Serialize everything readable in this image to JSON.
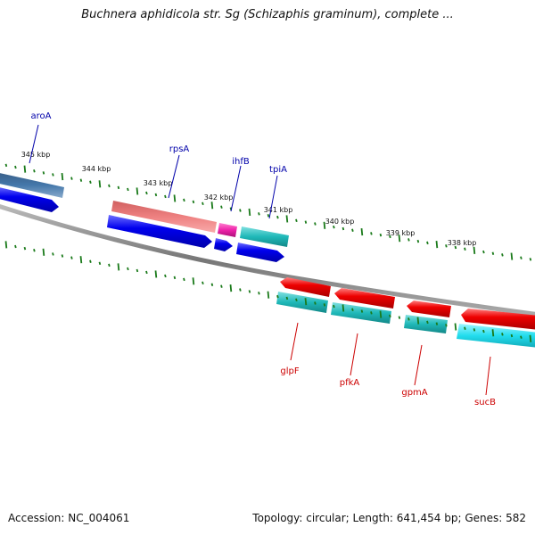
{
  "title": "Buchnera aphidicola str. Sg (Schizaphis graminum), complete ...",
  "footer": {
    "accession": "Accession: NC_004061",
    "topology": "Topology: circular; Length: 641,454 bp; Genes: 582"
  },
  "ticks": [
    {
      "label": "345 kbp",
      "kbp": 345
    },
    {
      "label": "344 kbp",
      "kbp": 344
    },
    {
      "label": "343 kbp",
      "kbp": 343
    },
    {
      "label": "342 kbp",
      "kbp": 342
    },
    {
      "label": "341 kbp",
      "kbp": 341
    },
    {
      "label": "340 kbp",
      "kbp": 340
    },
    {
      "label": "339 kbp",
      "kbp": 339
    },
    {
      "label": "338 kbp",
      "kbp": 338
    }
  ],
  "top_genes": [
    {
      "name": "aroA",
      "color": "#0000aa"
    },
    {
      "name": "rpsA",
      "color": "#0000aa"
    },
    {
      "name": "ihfB",
      "color": "#0000aa"
    },
    {
      "name": "tpiA",
      "color": "#0000aa"
    }
  ],
  "bottom_genes": [
    {
      "name": "glpF",
      "color": "#cc0000"
    },
    {
      "name": "pfkA",
      "color": "#cc0000"
    },
    {
      "name": "gpmA",
      "color": "#cc0000"
    },
    {
      "name": "sucB",
      "color": "#cc0000"
    }
  ],
  "colors": {
    "tick": "#1a7a1a",
    "backbone": "#888888",
    "cds_forward": "#0000ee",
    "cds_reverse": "#ee0000",
    "teal": "#1fb8b8",
    "cyan": "#22ddee",
    "salmon": "#ee8080",
    "magenta": "#ee22aa",
    "steelblue": "#4477aa"
  }
}
